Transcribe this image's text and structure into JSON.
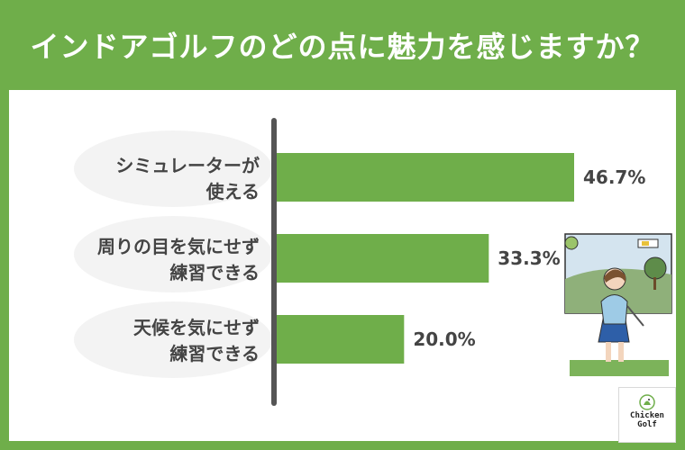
{
  "title": "インドアゴルフのどの点に魅力を感じますか？",
  "colors": {
    "header_bg": "#6fae4a",
    "bar": "#6fae4a",
    "axis": "#555555",
    "text": "#444444"
  },
  "chart_data": {
    "type": "bar",
    "orientation": "horizontal",
    "title": "インドアゴルフのどの点に魅力を感じますか？",
    "categories": [
      [
        "シミュレーターが",
        "使える"
      ],
      [
        "周りの目を気にせず",
        "練習できる"
      ],
      [
        "天候を気にせず",
        "練習できる"
      ]
    ],
    "values": [
      46.7,
      33.3,
      20.0
    ],
    "value_labels": [
      "46.7%",
      "33.3%",
      "20.0%"
    ],
    "unit": "%",
    "xlim": [
      0,
      50
    ],
    "grid": false,
    "legend": "none"
  },
  "illustration": {
    "icon": "golfer-at-simulator-illustration"
  },
  "logo": {
    "line1": "Chicken",
    "line2": "Golf",
    "icon": "chicken-golf-logo-icon"
  }
}
